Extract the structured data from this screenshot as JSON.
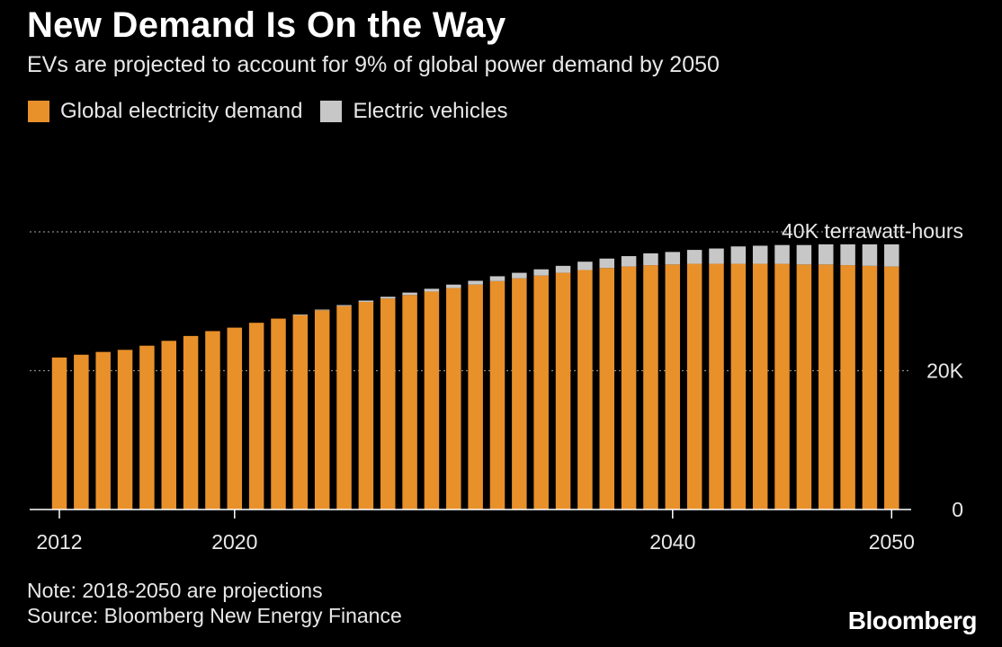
{
  "title": "New Demand Is On the Way",
  "subtitle": "EVs are projected to account for 9% of global power demand by 2050",
  "legend": {
    "demand_label": "Global electricity demand",
    "ev_label": "Electric vehicles"
  },
  "note": "Note: 2018-2050 are projections",
  "source": "Source: Bloomberg New Energy Finance",
  "logo": "Bloomberg",
  "colors": {
    "background": "#000000",
    "demand": "#e8902a",
    "ev": "#c7c7c7",
    "grid": "#8a8a8a",
    "text": "#ffffff"
  },
  "chart_data": {
    "type": "bar",
    "stacked": true,
    "title": "New Demand Is On the Way",
    "subtitle": "EVs are projected to account for 9% of global power demand by 2050",
    "ylabel": "",
    "xlabel": "",
    "ylim": [
      0,
      40000
    ],
    "y_ticks": [
      {
        "value": 0,
        "label": "0"
      },
      {
        "value": 20000,
        "label": "20K"
      },
      {
        "value": 40000,
        "label": "40K terrawatt-hours"
      }
    ],
    "x_ticks": [
      2012,
      2020,
      2040,
      2050
    ],
    "grid": "dotted horizontal at tick values",
    "legend_position": "top-left",
    "categories": [
      2012,
      2013,
      2014,
      2015,
      2016,
      2017,
      2018,
      2019,
      2020,
      2021,
      2022,
      2023,
      2024,
      2025,
      2026,
      2027,
      2028,
      2029,
      2030,
      2031,
      2032,
      2033,
      2034,
      2035,
      2036,
      2037,
      2038,
      2039,
      2040,
      2041,
      2042,
      2043,
      2044,
      2045,
      2046,
      2047,
      2048,
      2049,
      2050
    ],
    "series": [
      {
        "name": "Global electricity demand",
        "color": "#e8902a",
        "values": [
          21900,
          22300,
          22700,
          23000,
          23600,
          24300,
          25000,
          25700,
          26200,
          26900,
          27500,
          28000,
          28700,
          29300,
          29900,
          30400,
          30900,
          31400,
          31900,
          32400,
          32900,
          33300,
          33700,
          34100,
          34500,
          34800,
          35000,
          35200,
          35300,
          35400,
          35400,
          35400,
          35400,
          35400,
          35300,
          35300,
          35200,
          35100,
          35000
        ]
      },
      {
        "name": "Electric vehicles",
        "color": "#c7c7c7",
        "values": [
          0,
          0,
          0,
          0,
          0,
          0,
          0,
          0,
          0,
          0,
          0,
          100,
          100,
          150,
          200,
          250,
          350,
          400,
          500,
          550,
          700,
          800,
          900,
          1000,
          1200,
          1350,
          1500,
          1700,
          1800,
          2000,
          2200,
          2500,
          2600,
          2700,
          2800,
          2900,
          3000,
          3100,
          3200
        ]
      }
    ]
  }
}
